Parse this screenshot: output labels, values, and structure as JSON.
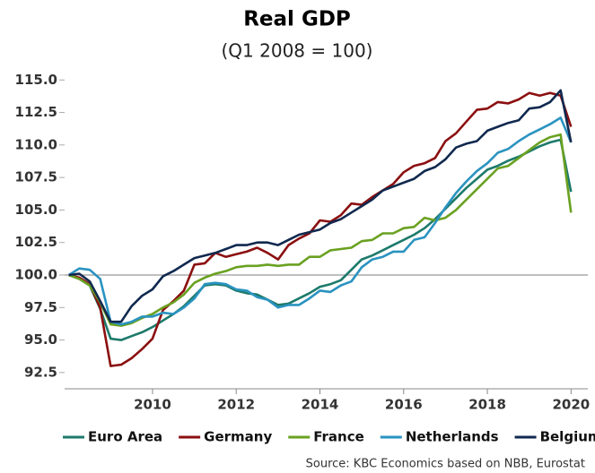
{
  "chart_data": {
    "type": "line",
    "title": "Real GDP",
    "subtitle": "(Q1 2008 = 100)",
    "source": "Source: KBC Economics based on NBB, Eurostat",
    "x": [
      2008,
      2008.25,
      2008.5,
      2008.75,
      2009,
      2009.25,
      2009.5,
      2009.75,
      2010,
      2010.25,
      2010.5,
      2010.75,
      2011,
      2011.25,
      2011.5,
      2011.75,
      2012,
      2012.25,
      2012.5,
      2012.75,
      2013,
      2013.25,
      2013.5,
      2013.75,
      2014,
      2014.25,
      2014.5,
      2014.75,
      2015,
      2015.25,
      2015.5,
      2015.75,
      2016,
      2016.25,
      2016.5,
      2016.75,
      2017,
      2017.25,
      2017.5,
      2017.75,
      2018,
      2018.25,
      2018.5,
      2018.75,
      2019,
      2019.25,
      2019.5,
      2019.75,
      2020
    ],
    "series": [
      {
        "name": "Euro Area",
        "color": "#1d7a6b",
        "values": [
          100,
          99.7,
          99.2,
          97.4,
          95.1,
          95.0,
          95.3,
          95.6,
          96.0,
          96.5,
          97.0,
          97.6,
          98.4,
          99.2,
          99.3,
          99.2,
          98.8,
          98.6,
          98.5,
          98.1,
          97.7,
          97.8,
          98.2,
          98.6,
          99.1,
          99.3,
          99.6,
          100.4,
          101.2,
          101.5,
          101.9,
          102.3,
          102.7,
          103.1,
          103.6,
          104.3,
          105.1,
          105.9,
          106.7,
          107.4,
          108.1,
          108.4,
          108.8,
          109.1,
          109.5,
          109.9,
          110.2,
          110.4,
          106.4
        ]
      },
      {
        "name": "Germany",
        "color": "#8b0f10",
        "values": [
          100,
          99.8,
          99.3,
          97.5,
          93.0,
          93.1,
          93.6,
          94.3,
          95.1,
          97.3,
          98.0,
          98.8,
          100.8,
          100.9,
          101.7,
          101.4,
          101.6,
          101.8,
          102.1,
          101.7,
          101.2,
          102.3,
          102.8,
          103.2,
          104.2,
          104.1,
          104.6,
          105.5,
          105.4,
          106.0,
          106.5,
          107.0,
          107.9,
          108.4,
          108.6,
          109.0,
          110.3,
          110.9,
          111.8,
          112.7,
          112.8,
          113.3,
          113.2,
          113.5,
          114.0,
          113.8,
          114.0,
          113.8,
          111.4
        ]
      },
      {
        "name": "France",
        "color": "#6aa121",
        "values": [
          100,
          99.7,
          99.2,
          97.9,
          96.2,
          96.1,
          96.3,
          96.7,
          97.0,
          97.5,
          97.9,
          98.5,
          99.4,
          99.8,
          100.1,
          100.3,
          100.6,
          100.7,
          100.7,
          100.8,
          100.7,
          100.8,
          100.8,
          101.4,
          101.4,
          101.9,
          102.0,
          102.1,
          102.6,
          102.7,
          103.2,
          103.2,
          103.6,
          103.7,
          104.4,
          104.2,
          104.4,
          105.0,
          105.8,
          106.6,
          107.4,
          108.2,
          108.4,
          109.0,
          109.6,
          110.2,
          110.6,
          110.8,
          104.8
        ]
      },
      {
        "name": "Netherlands",
        "color": "#2a93c0",
        "values": [
          100,
          100.5,
          100.4,
          99.7,
          96.4,
          96.2,
          96.4,
          96.8,
          96.8,
          97.1,
          97.0,
          97.5,
          98.2,
          99.3,
          99.4,
          99.3,
          98.9,
          98.8,
          98.3,
          98.1,
          97.5,
          97.7,
          97.7,
          98.2,
          98.8,
          98.7,
          99.2,
          99.5,
          100.6,
          101.2,
          101.4,
          101.8,
          101.8,
          102.7,
          102.9,
          104.0,
          105.2,
          106.3,
          107.2,
          108.0,
          108.6,
          109.4,
          109.7,
          110.3,
          110.8,
          111.2,
          111.6,
          112.1,
          110.2
        ]
      },
      {
        "name": "Belgium",
        "color": "#10294f",
        "values": [
          100,
          100.1,
          99.5,
          98.0,
          96.4,
          96.4,
          97.6,
          98.4,
          98.9,
          99.9,
          100.3,
          100.8,
          101.3,
          101.5,
          101.7,
          102.0,
          102.3,
          102.3,
          102.5,
          102.5,
          102.3,
          102.7,
          103.1,
          103.3,
          103.5,
          104.0,
          104.3,
          104.8,
          105.3,
          105.8,
          106.5,
          106.8,
          107.1,
          107.4,
          108.0,
          108.3,
          108.9,
          109.8,
          110.1,
          110.3,
          111.1,
          111.4,
          111.7,
          111.9,
          112.8,
          112.9,
          113.3,
          114.2,
          110.2
        ]
      }
    ],
    "xlim": [
      2007.9,
      2020.4
    ],
    "xticks": [
      2010,
      2012,
      2014,
      2016,
      2018,
      2020
    ],
    "ylim": [
      91.25,
      115.5
    ],
    "yticks": [
      {
        "value": 92.5,
        "label": "92.5"
      },
      {
        "value": 95,
        "label": "95.0"
      },
      {
        "value": 97.5,
        "label": "97.5"
      },
      {
        "value": 100,
        "label": "100.0"
      },
      {
        "value": 102.5,
        "label": "102.5"
      },
      {
        "value": 105,
        "label": "105.0"
      },
      {
        "value": 107.5,
        "label": "107.5"
      },
      {
        "value": 110,
        "label": "110.0"
      },
      {
        "value": 112.5,
        "label": "112.5"
      },
      {
        "value": 115,
        "label": "115.0"
      }
    ],
    "hline": 100,
    "legend": "bottom",
    "grid": false
  }
}
